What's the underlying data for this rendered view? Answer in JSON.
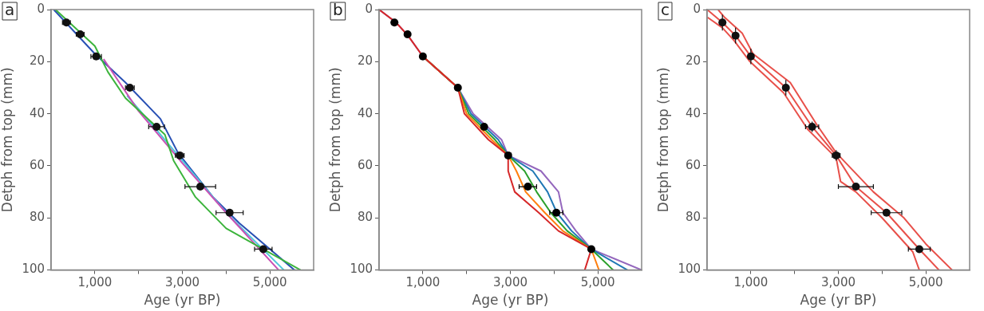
{
  "chart_data": [
    {
      "type": "line",
      "annotations": [
        "a"
      ],
      "xlabel": "Age (yr BP)",
      "ylabel": "Detph from top (mm)",
      "xlim": [
        0,
        6000
      ],
      "ylim": [
        100,
        0
      ],
      "xticks": [
        {
          "value": 1000,
          "label": "1,000"
        },
        {
          "value": 2000,
          "label": null
        },
        {
          "value": 3000,
          "label": "3,000"
        },
        {
          "value": 4000,
          "label": null
        },
        {
          "value": 5000,
          "label": "5,000"
        }
      ],
      "yticks": [
        0,
        20,
        40,
        60,
        80,
        100
      ],
      "grid": false,
      "legend": false,
      "marker": "none",
      "line_style": "solid",
      "series": [
        {
          "color": "#3cb43c",
          "x": [
            100,
            1000,
            1300,
            1700,
            2600,
            2800,
            3300,
            4000,
            5700
          ],
          "values": [
            0,
            14,
            24,
            34,
            48,
            58,
            72,
            84,
            100
          ]
        },
        {
          "color": "#c850b4",
          "x": [
            1200,
            2000,
            3000,
            4000,
            5200
          ],
          "values": [
            19,
            39,
            59,
            78,
            100
          ]
        },
        {
          "color": "#50c8dc",
          "x": [
            1735,
            2400,
            3000,
            4000,
            5320
          ],
          "values": [
            33,
            46,
            58,
            78,
            100
          ]
        },
        {
          "color": "#2850b4",
          "x": [
            60,
            1000,
            1700,
            2500,
            2900,
            3700,
            4300,
            5560
          ],
          "values": [
            0,
            17,
            28,
            42,
            55,
            72,
            82,
            100
          ]
        },
        {
          "type": "scatter",
          "marker": "circle",
          "color": "#111111",
          "x": [
            350,
            665,
            1030,
            1800,
            2410,
            2940,
            3410,
            4080,
            4850
          ],
          "values": [
            5,
            9.5,
            18,
            30,
            45,
            56,
            68,
            78,
            92
          ],
          "xerrors": [
            90,
            90,
            120,
            100,
            180,
            100,
            350,
            310,
            200
          ]
        }
      ]
    },
    {
      "type": "line",
      "annotations": [
        "b"
      ],
      "xlabel": "Age (yr BP)",
      "ylabel": "Detph from top (mm)",
      "xlim": [
        0,
        6000
      ],
      "ylim": [
        100,
        0
      ],
      "xticks": [
        {
          "value": 1000,
          "label": "1,000"
        },
        {
          "value": 2000,
          "label": null
        },
        {
          "value": 3000,
          "label": "3,000"
        },
        {
          "value": 4000,
          "label": null
        },
        {
          "value": 5000,
          "label": "5,000"
        }
      ],
      "yticks": [
        0,
        20,
        40,
        60,
        80,
        100
      ],
      "grid": false,
      "legend": false,
      "marker": "none",
      "line_style": "solid",
      "series": [
        {
          "color": "#d62728",
          "x": [
            0,
            390,
            660,
            1000,
            1800,
            1950,
            2500,
            2950,
            2950,
            3100,
            3650,
            4100,
            4850,
            4700
          ],
          "values": [
            0,
            5,
            10,
            18,
            30,
            40,
            50,
            56,
            62,
            70,
            78,
            85,
            92,
            100
          ]
        },
        {
          "color": "#ff7f0e",
          "x": [
            1000,
            1800,
            2000,
            2575,
            2950,
            3138,
            3350,
            3788,
            4200,
            4850,
            5025
          ],
          "values": [
            18,
            30,
            40,
            50,
            56,
            62,
            70,
            78,
            85,
            92,
            100
          ]
        },
        {
          "color": "#2ca02c",
          "x": [
            1000,
            1800,
            2050,
            2650,
            2950,
            3325,
            3600,
            3925,
            4300,
            4850,
            5350
          ],
          "values": [
            18,
            30,
            40,
            50,
            56,
            62,
            70,
            78,
            85,
            92,
            100
          ]
        },
        {
          "color": "#1f77b4",
          "x": [
            1000,
            1800,
            2100,
            2725,
            2950,
            3513,
            3850,
            4063,
            4400,
            4850,
            5675
          ],
          "values": [
            18,
            30,
            40,
            50,
            56,
            62,
            70,
            78,
            85,
            92,
            100
          ]
        },
        {
          "color": "#9467bd",
          "x": [
            0,
            390,
            660,
            1000,
            1800,
            2150,
            2800,
            2950,
            3700,
            4100,
            4200,
            4500,
            4850,
            6000
          ],
          "values": [
            0,
            5,
            10,
            18,
            30,
            40,
            50,
            56,
            62,
            70,
            78,
            85,
            92,
            100
          ]
        },
        {
          "type": "scatter",
          "marker": "circle",
          "color": "#000000",
          "x": [
            350,
            650,
            1000,
            1800,
            2400,
            2950,
            3400,
            4050,
            4850
          ],
          "values": [
            5,
            9.5,
            18,
            30,
            45,
            56,
            68,
            78,
            92
          ],
          "xerrors": [
            null,
            null,
            null,
            null,
            null,
            null,
            200,
            150,
            null
          ]
        }
      ]
    },
    {
      "type": "line",
      "annotations": [
        "c"
      ],
      "xlabel": "Age (yr BP)",
      "ylabel": "Detph from top (mm)",
      "xlim": [
        0,
        6000
      ],
      "ylim": [
        100,
        0
      ],
      "xticks": [
        {
          "value": 1000,
          "label": "1,000"
        },
        {
          "value": 2000,
          "label": null
        },
        {
          "value": 3000,
          "label": "3,000"
        },
        {
          "value": 4000,
          "label": null
        },
        {
          "value": 5000,
          "label": "5,000"
        }
      ],
      "yticks": [
        0,
        20,
        40,
        60,
        80,
        100
      ],
      "grid": false,
      "legend": false,
      "marker": "none",
      "line_style": "solid",
      "series": [
        {
          "type": "line",
          "color": "#e8504a",
          "x": [
            10,
            350,
            620,
            980,
            1750,
            2300,
            2950,
            3050,
            3400,
            4000,
            4700,
            4850
          ],
          "values": [
            3,
            7,
            12,
            20,
            32,
            46,
            57,
            66,
            70,
            80,
            93,
            100
          ]
        },
        {
          "type": "line",
          "color": "#e8504a",
          "x": [
            0,
            350,
            650,
            1000,
            1800,
            2400,
            2950,
            3400,
            4100,
            4850,
            5300
          ],
          "values": [
            0,
            5,
            10,
            18,
            30,
            45,
            56,
            68,
            78,
            92,
            100
          ]
        },
        {
          "type": "line",
          "color": "#e8504a",
          "x": [
            250,
            400,
            800,
            1050,
            1900,
            2500,
            2950,
            3800,
            4500,
            5000,
            5600
          ],
          "values": [
            0,
            3,
            9,
            17,
            28,
            44,
            55,
            70,
            80,
            90,
            100
          ]
        },
        {
          "type": "scatter",
          "marker": "circle",
          "color": "#111111",
          "x": [
            350,
            650,
            1000,
            1800,
            2400,
            2950,
            3400,
            4100,
            4850
          ],
          "values": [
            5,
            10,
            18,
            30,
            45,
            56,
            68,
            78,
            92
          ],
          "xerrors": [
            null,
            null,
            null,
            null,
            150,
            90,
            400,
            350,
            250
          ],
          "errors": [
            3,
            3,
            3,
            3,
            2,
            2,
            1,
            1,
            1
          ]
        }
      ]
    }
  ]
}
